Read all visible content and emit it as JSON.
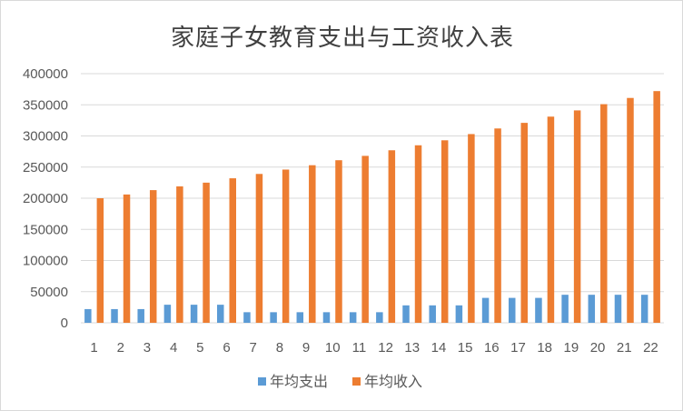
{
  "chart_data": {
    "type": "bar",
    "title": "家庭子女教育支出与工资收入表",
    "xlabel": "",
    "ylabel": "",
    "categories": [
      "1",
      "2",
      "3",
      "4",
      "5",
      "6",
      "7",
      "8",
      "9",
      "10",
      "11",
      "12",
      "13",
      "14",
      "15",
      "16",
      "17",
      "18",
      "19",
      "20",
      "21",
      "22"
    ],
    "ylim": [
      0,
      400000
    ],
    "yticks": [
      0,
      50000,
      100000,
      150000,
      200000,
      250000,
      300000,
      350000,
      400000
    ],
    "grid": true,
    "legend": "bottom",
    "series": [
      {
        "name": "年均支出",
        "color": "#5b9bd5",
        "values": [
          22000,
          22000,
          22000,
          29000,
          29000,
          29000,
          17000,
          17000,
          17000,
          17000,
          17000,
          17000,
          28000,
          28000,
          28000,
          40000,
          40000,
          40000,
          45000,
          45000,
          45000,
          45000
        ]
      },
      {
        "name": "年均收入",
        "color": "#ed7d31",
        "values": [
          200000,
          206000,
          213000,
          219000,
          225000,
          232000,
          239000,
          246000,
          253000,
          261000,
          268000,
          277000,
          285000,
          293000,
          303000,
          312000,
          321000,
          331000,
          341000,
          351000,
          361000,
          372000
        ]
      }
    ]
  }
}
